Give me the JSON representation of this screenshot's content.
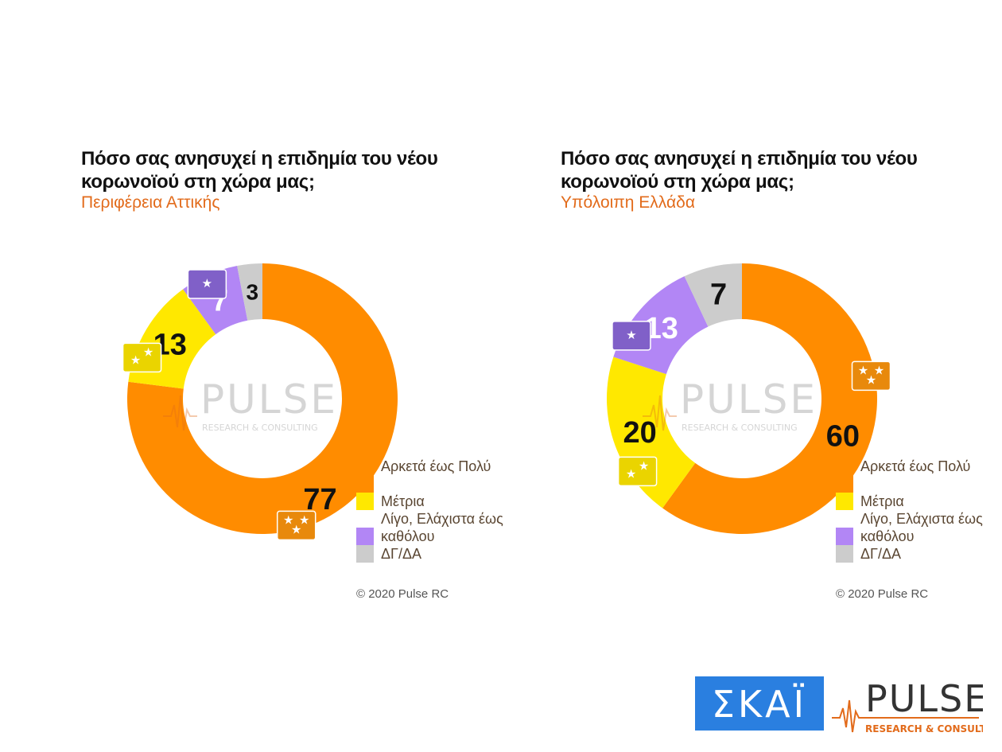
{
  "chart_data": [
    {
      "type": "pie",
      "title": "Πόσο σας ανησυχεί η επιδημία του νέου κορωνοϊού στη χώρα μας;",
      "subtitle": "Περιφέρεια Αττικής",
      "categories": [
        "Αρκετά έως Πολύ",
        "Μέτρια",
        "Λίγο, Ελάχιστα έως καθόλου",
        "ΔΓ/ΔΑ"
      ],
      "values": [
        77,
        13,
        7,
        3
      ],
      "labels": [
        "77",
        "13",
        "7",
        "3"
      ],
      "colors": [
        "#FF8C00",
        "#FFE800",
        "#B286F5",
        "#CCCCCC"
      ],
      "legend_position": "bottom-right"
    },
    {
      "type": "pie",
      "title": "Πόσο σας ανησυχεί η επιδημία του νέου κορωνοϊού στη χώρα μας;",
      "subtitle": "Υπόλοιπη Ελλάδα",
      "categories": [
        "Αρκετά έως Πολύ",
        "Μέτρια",
        "Λίγο, Ελάχιστα έως καθόλου",
        "ΔΓ/ΔΑ"
      ],
      "values": [
        60,
        20,
        13,
        7
      ],
      "labels": [
        "60",
        "20",
        "13",
        "7"
      ],
      "colors": [
        "#FF8C00",
        "#FFE800",
        "#B286F5",
        "#CCCCCC"
      ],
      "legend_position": "bottom-right"
    }
  ],
  "legend": {
    "items": [
      {
        "label": "Αρκετά έως Πολύ",
        "color": "#FF8C00"
      },
      {
        "label": "Μέτρια",
        "color": "#FFE800"
      },
      {
        "label": "Λίγο, Ελάχιστα έως καθόλου",
        "color": "#B286F5"
      },
      {
        "label": "ΔΓ/ΔΑ",
        "color": "#CCCCCC"
      }
    ]
  },
  "copyright": "© 2020 Pulse RC",
  "watermark": {
    "name": "PULSE",
    "tagline": "RESEARCH & CONSULTING",
    "icon": "pulse-wave-icon"
  },
  "logos": {
    "skai": {
      "text": "ΣΚΑΪ",
      "color": "#2a7fe0"
    },
    "pulse": {
      "name": "PULSE",
      "tagline": "RESEARCH & CONSULTING",
      "icon": "pulse-wave-icon"
    }
  },
  "icons": {
    "one_star": "one-star-icon",
    "two_stars": "two-stars-icon",
    "three_stars": "three-stars-icon"
  }
}
